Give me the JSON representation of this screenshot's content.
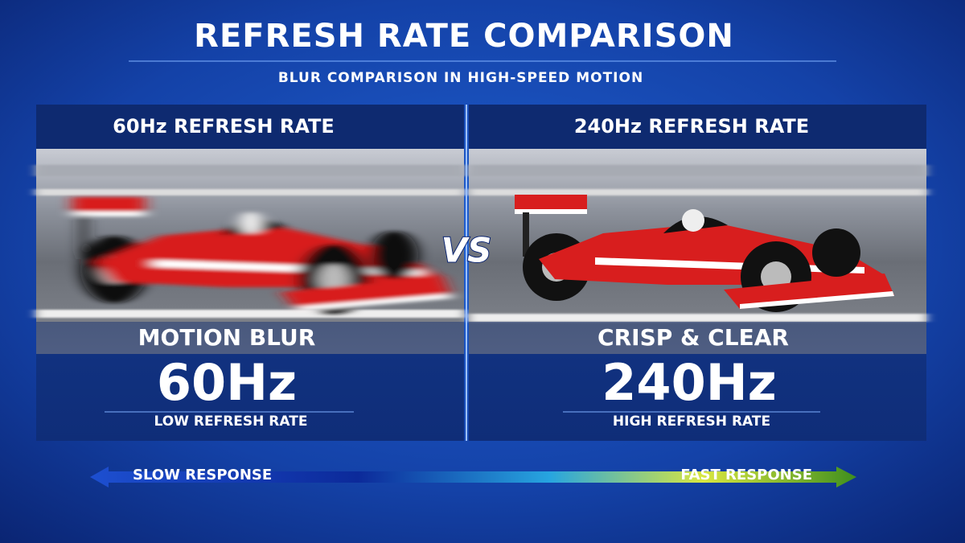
{
  "header": {
    "title": "REFRESH RATE COMPARISON",
    "subtitle": "BLUR COMPARISON IN HIGH-SPEED MOTION"
  },
  "panels": [
    {
      "heading": "60Hz REFRESH RATE",
      "caption": "MOTION BLUR",
      "rate": "60Hz",
      "label": "LOW REFRESH RATE"
    },
    {
      "heading": "240Hz REFRESH RATE",
      "caption": "CRISP & CLEAR",
      "rate": "240Hz",
      "label": "HIGH REFRESH RATE"
    }
  ],
  "versus": "VS",
  "scale": {
    "left": "SLOW RESPONSE",
    "right": "FAST RESPONSE"
  }
}
